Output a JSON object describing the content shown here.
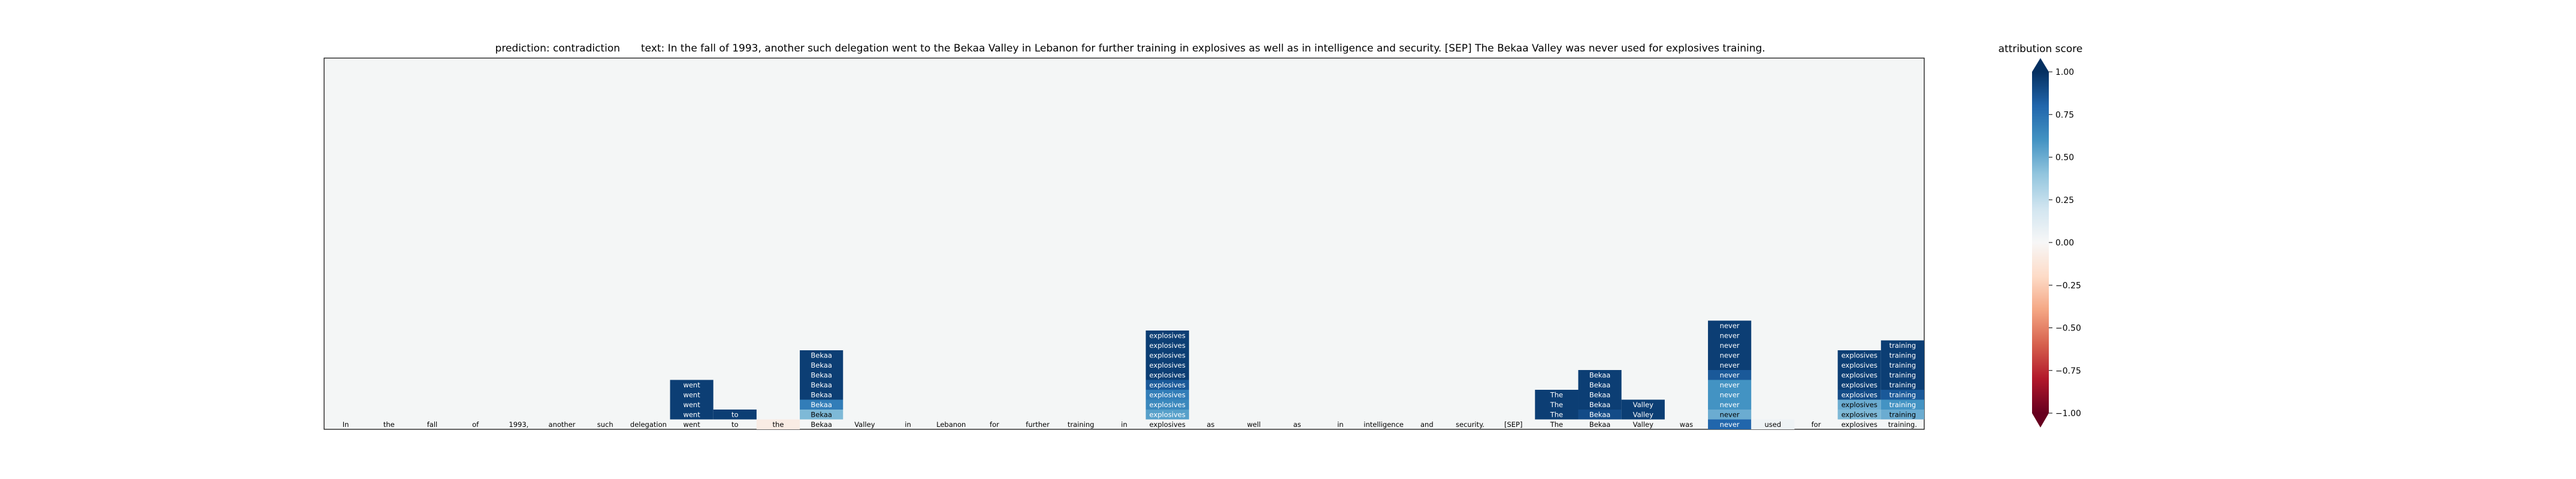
{
  "chart_data": {
    "type": "heatmap",
    "title_prediction": "prediction:  contradiction",
    "title_text": "text:  In the fall of 1993, another such delegation went to the Bekaa Valley in Lebanon for further training in explosives as well as in intelligence and security. [SEP] The Bekaa Valley was never used for explosives training.",
    "tokens": [
      "In",
      "the",
      "fall",
      "of",
      "1993,",
      "another",
      "such",
      "delegation",
      "went",
      "to",
      "the",
      "Bekaa",
      "Valley",
      "in",
      "Lebanon",
      "for",
      "further",
      "training",
      "in",
      "explosives",
      "as",
      "well",
      "as",
      "in",
      "intelligence",
      "and",
      "security.",
      "[SEP]",
      "The",
      "Bekaa",
      "Valley",
      "was",
      "never",
      "used",
      "for",
      "explosives",
      "training."
    ],
    "baseline_scores": [
      0,
      0,
      0,
      0,
      0,
      0,
      0,
      0,
      0,
      0,
      -0.08,
      0,
      0,
      0,
      0,
      0,
      0,
      0,
      0,
      0,
      0,
      0,
      0,
      0,
      0,
      0,
      0,
      0,
      0,
      0,
      0,
      0,
      0.8,
      0.05,
      0,
      0,
      0
    ],
    "columns": [
      {
        "token_index": 8,
        "label": "went",
        "scores": [
          0.95,
          0.95,
          0.95,
          0.95
        ]
      },
      {
        "token_index": 9,
        "label": "to",
        "scores": [
          0.95
        ]
      },
      {
        "token_index": 11,
        "label": "Bekaa",
        "scores": [
          0.95,
          0.95,
          0.95,
          0.95,
          0.95,
          0.7,
          0.45
        ]
      },
      {
        "token_index": 19,
        "label": "explosives",
        "scores": [
          0.95,
          0.95,
          0.95,
          0.95,
          0.95,
          0.85,
          0.7,
          0.65,
          0.55
        ]
      },
      {
        "token_index": 28,
        "label": "The",
        "scores": [
          0.95,
          0.95,
          0.95
        ]
      },
      {
        "token_index": 29,
        "label": "Bekaa",
        "scores": [
          0.95,
          0.95,
          0.95,
          0.95,
          0.9
        ]
      },
      {
        "token_index": 30,
        "label": "Valley",
        "scores": [
          0.95,
          0.95
        ]
      },
      {
        "token_index": 32,
        "label": "never",
        "scores": [
          0.95,
          0.95,
          0.95,
          0.95,
          0.95,
          0.85,
          0.6,
          0.6,
          0.6,
          0.5
        ]
      },
      {
        "token_index": 35,
        "label": "explosives",
        "scores": [
          0.95,
          0.95,
          0.95,
          0.95,
          0.9,
          0.5,
          0.45
        ]
      },
      {
        "token_index": 36,
        "label": "training",
        "scores": [
          0.95,
          0.95,
          0.95,
          0.95,
          0.95,
          0.85,
          0.6,
          0.5
        ]
      }
    ],
    "colorbar": {
      "label": "attribution score",
      "ticks": [
        "1.00",
        "0.75",
        "0.50",
        "0.25",
        "0.00",
        "−0.25",
        "−0.50",
        "−0.75",
        "−1.00"
      ],
      "range": [
        -1,
        1
      ]
    },
    "colors": {
      "positive": "#053061",
      "neutral": "#f7f7f7",
      "negative": "#67001f",
      "background": "#f4f6f6"
    }
  }
}
